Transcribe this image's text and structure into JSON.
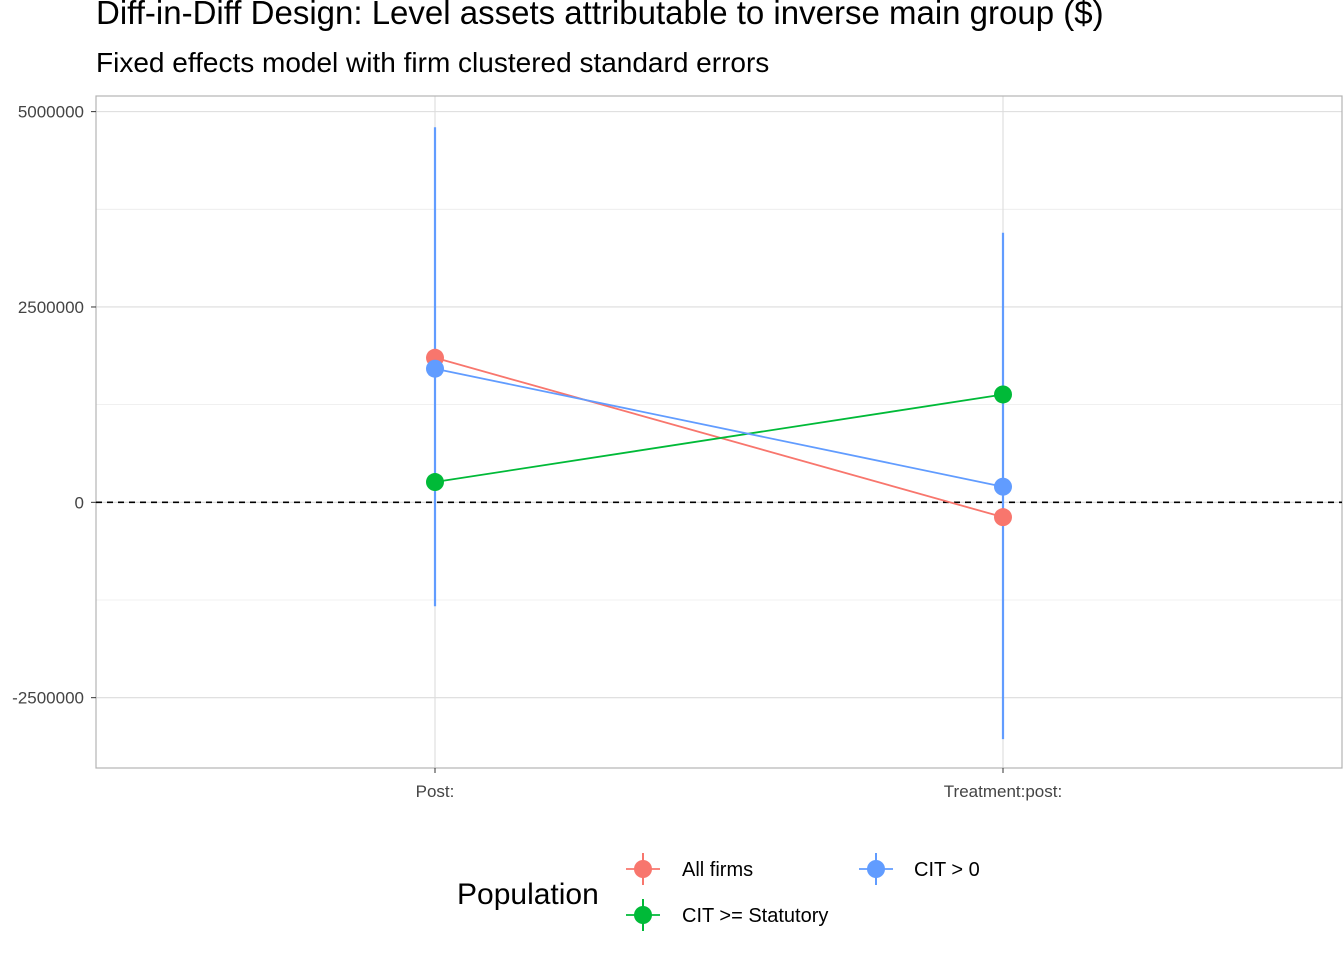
{
  "chart_data": {
    "type": "line",
    "title": "Diff-in-Diff Design: Level assets attributable to inverse main group  ($)",
    "subtitle": "Fixed effects model with firm clustered standard errors",
    "xlabel": "",
    "ylabel": "",
    "categories": [
      "Post:",
      "Treatment:post:"
    ],
    "ylim": [
      -3400000,
      5200000
    ],
    "yticks": [
      -2500000,
      0,
      2500000,
      5000000
    ],
    "ytick_labels": [
      "-2500000",
      "0",
      "2500000",
      "5000000"
    ],
    "reference_line": 0,
    "grid": true,
    "legend": {
      "title": "Population",
      "placement": "bottom"
    },
    "series": [
      {
        "name": "All firms",
        "color": "#F8766D",
        "values": [
          1850000,
          -190000
        ],
        "ci_low": [
          null,
          null
        ],
        "ci_high": [
          null,
          null
        ]
      },
      {
        "name": "CIT >= Statutory",
        "color": "#00BA38",
        "values": [
          260000,
          1380000
        ],
        "ci_low": [
          null,
          null
        ],
        "ci_high": [
          null,
          null
        ]
      },
      {
        "name": "CIT > 0",
        "color": "#619CFF",
        "values": [
          1710000,
          200000
        ],
        "ci_low": [
          -1330000,
          -3030000
        ],
        "ci_high": [
          4800000,
          3450000
        ]
      }
    ]
  }
}
